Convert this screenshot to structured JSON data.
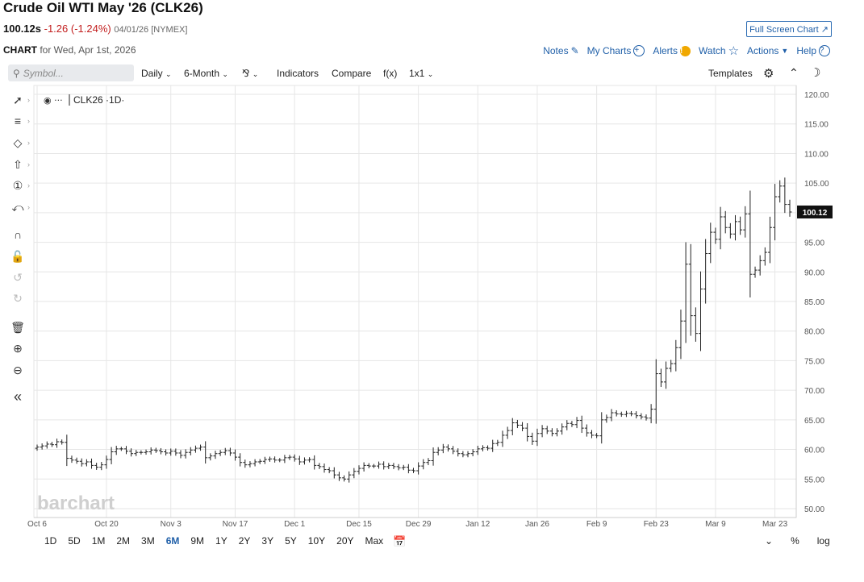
{
  "header": {
    "title": "Crude Oil WTI May '26 (CLK26)",
    "last": "100.12s",
    "change": "-1.26 (-1.24%)",
    "date_exchange": "04/01/26 [NYMEX]",
    "chart_label": "CHART",
    "chart_for": "for Wed, Apr 1st, 2026",
    "full_screen": "Full Screen Chart"
  },
  "links": {
    "notes": "Notes",
    "my_charts": "My Charts",
    "alerts": "Alerts",
    "watch": "Watch",
    "actions": "Actions",
    "help": "Help"
  },
  "toolbar": {
    "search_placeholder": "Symbol...",
    "interval": "Daily",
    "range": "6-Month",
    "indicators": "Indicators",
    "compare": "Compare",
    "fx": "f(x)",
    "layout": "1x1",
    "templates": "Templates"
  },
  "legend": {
    "symbol": "CLK26",
    "interval": "1D"
  },
  "watermark": "barchart",
  "periods": [
    "1D",
    "5D",
    "1M",
    "2M",
    "3M",
    "6M",
    "9M",
    "1Y",
    "2Y",
    "3Y",
    "5Y",
    "10Y",
    "20Y",
    "Max"
  ],
  "selected_period": "6M",
  "bottom_right": {
    "percent": "%",
    "log": "log"
  },
  "colors": {
    "up": "#222222",
    "accent": "#1f5fa8",
    "down_text": "#c21e1e",
    "price_tag": "#111111"
  },
  "chart_data": {
    "type": "ohlc",
    "title": "CLK26",
    "ylim": [
      48.5,
      121.5
    ],
    "yticks": [
      50,
      55,
      60,
      65,
      70,
      75,
      80,
      85,
      90,
      95,
      100,
      105,
      110,
      115,
      120
    ],
    "last_price": 100.12,
    "x_tick_labels": [
      "Oct 6",
      "Oct 20",
      "Nov 3",
      "Nov 17",
      "Dec 1",
      "Dec 15",
      "Dec 29",
      "Jan 12",
      "Jan 26",
      "Feb 9",
      "Feb 23",
      "Mar 9",
      "Mar 23"
    ],
    "x_tick_bar_index": [
      0,
      14,
      27,
      40,
      52,
      65,
      77,
      89,
      101,
      113,
      125,
      137,
      149
    ],
    "closes": [
      60.4,
      60.6,
      60.9,
      60.8,
      61.3,
      61.2,
      58.5,
      58.2,
      58.0,
      57.6,
      57.9,
      57.3,
      57.0,
      57.4,
      58.3,
      59.6,
      60.1,
      60.1,
      59.7,
      59.3,
      59.5,
      59.5,
      59.6,
      59.9,
      59.8,
      59.6,
      59.4,
      59.7,
      59.4,
      59.0,
      59.5,
      59.9,
      60.2,
      60.4,
      58.6,
      58.9,
      59.3,
      59.5,
      59.8,
      59.4,
      58.7,
      57.8,
      57.4,
      57.6,
      57.9,
      58.0,
      58.3,
      58.4,
      58.2,
      58.2,
      58.6,
      58.7,
      58.4,
      57.9,
      58.2,
      58.3,
      57.3,
      57.1,
      56.6,
      56.4,
      55.7,
      55.2,
      55.0,
      55.7,
      56.3,
      56.8,
      57.3,
      57.2,
      57.2,
      57.5,
      57.1,
      57.3,
      57.1,
      56.9,
      57.0,
      56.5,
      56.4,
      57.2,
      57.8,
      58.1,
      59.5,
      59.9,
      60.4,
      60.1,
      59.7,
      59.3,
      59.1,
      59.3,
      59.6,
      60.1,
      60.3,
      60.2,
      61.0,
      61.2,
      62.4,
      63.2,
      64.5,
      64.1,
      63.6,
      62.2,
      61.4,
      62.7,
      63.5,
      63.1,
      62.7,
      63.1,
      63.8,
      64.4,
      64.2,
      64.9,
      63.6,
      62.8,
      62.4,
      62.3,
      65.0,
      65.4,
      66.2,
      66.0,
      65.9,
      66.1,
      66.0,
      65.7,
      65.5,
      65.3,
      66.8,
      72.8,
      71.4,
      73.7,
      74.5,
      77.2,
      81.7,
      91.3,
      82.6,
      79.6,
      87.1,
      93.1,
      96.7,
      95.5,
      99.3,
      97.5,
      96.4,
      98.5,
      97.1,
      99.8,
      89.6,
      90.3,
      91.9,
      93.3,
      97.5,
      102.7,
      104.5,
      101.4,
      100.12
    ]
  }
}
